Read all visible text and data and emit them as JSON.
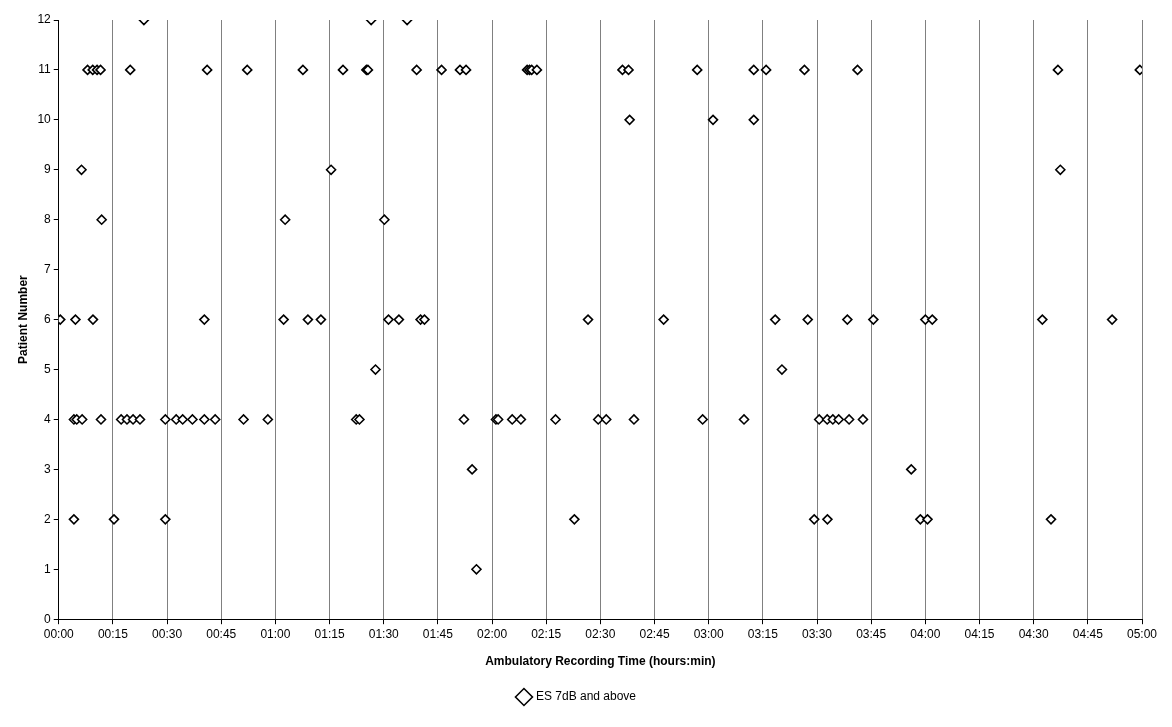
{
  "chart_data": {
    "type": "scatter",
    "xlabel": "Ambulatory Recording Time (hours:min)",
    "ylabel": "Patient Number",
    "xlim": [
      0,
      5
    ],
    "xticks": [
      {
        "value": 0,
        "label": "00:00"
      },
      {
        "value": 0.25,
        "label": "00:15"
      },
      {
        "value": 0.5,
        "label": "00:30"
      },
      {
        "value": 0.75,
        "label": "00:45"
      },
      {
        "value": 1,
        "label": "01:00"
      },
      {
        "value": 1.25,
        "label": "01:15"
      },
      {
        "value": 1.5,
        "label": "01:30"
      },
      {
        "value": 1.75,
        "label": "01:45"
      },
      {
        "value": 2,
        "label": "02:00"
      },
      {
        "value": 2.25,
        "label": "02:15"
      },
      {
        "value": 2.5,
        "label": "02:30"
      },
      {
        "value": 2.75,
        "label": "02:45"
      },
      {
        "value": 3,
        "label": "03:00"
      },
      {
        "value": 3.25,
        "label": "03:15"
      },
      {
        "value": 3.5,
        "label": "03:30"
      },
      {
        "value": 3.75,
        "label": "03:45"
      },
      {
        "value": 4,
        "label": "04:00"
      },
      {
        "value": 4.25,
        "label": "04:15"
      },
      {
        "value": 4.5,
        "label": "04:30"
      },
      {
        "value": 4.75,
        "label": "04:45"
      },
      {
        "value": 5,
        "label": "05:00"
      }
    ],
    "ylim": [
      0,
      12
    ],
    "yticks": [
      0,
      1,
      2,
      3,
      4,
      5,
      6,
      7,
      8,
      9,
      10,
      11,
      12
    ],
    "grid": "x",
    "legend": "bottom",
    "marker": "diamond",
    "series": [
      {
        "name": "ES 7dB and above",
        "color": "#000000",
        "x": [
          0.393,
          1.442,
          1.608,
          0.133,
          0.157,
          0.177,
          0.193,
          0.33,
          0.685,
          0.87,
          1.127,
          1.312,
          1.42,
          1.427,
          1.652,
          1.767,
          1.852,
          1.88,
          2.162,
          2.173,
          2.183,
          2.207,
          2.602,
          2.63,
          2.947,
          3.208,
          3.265,
          3.442,
          3.687,
          4.612,
          4.99,
          2.635,
          3.02,
          3.208,
          0.105,
          1.257,
          4.623,
          0.198,
          1.045,
          1.503,
          0.007,
          0.077,
          0.158,
          0.672,
          1.038,
          1.15,
          1.21,
          1.522,
          1.57,
          1.67,
          1.688,
          2.443,
          2.792,
          3.307,
          3.457,
          3.64,
          3.76,
          4.0,
          4.032,
          4.54,
          4.862,
          1.462,
          3.338,
          0.07,
          0.083,
          0.108,
          0.195,
          0.288,
          0.315,
          0.343,
          0.375,
          0.492,
          0.542,
          0.572,
          0.617,
          0.672,
          0.722,
          0.853,
          0.965,
          1.373,
          1.388,
          1.87,
          2.018,
          2.028,
          2.093,
          2.133,
          2.293,
          2.49,
          2.527,
          2.655,
          2.972,
          3.163,
          3.51,
          3.547,
          3.573,
          3.6,
          3.648,
          3.712,
          1.908,
          3.935,
          0.07,
          0.255,
          0.492,
          2.38,
          3.487,
          3.548,
          3.977,
          4.01,
          4.58,
          1.928
        ],
        "values": [
          12,
          12,
          12,
          11,
          11,
          11,
          11,
          11,
          11,
          11,
          11,
          11,
          11,
          11,
          11,
          11,
          11,
          11,
          11,
          11,
          11,
          11,
          11,
          11,
          11,
          11,
          11,
          11,
          11,
          11,
          11,
          10,
          10,
          10,
          9,
          9,
          9,
          8,
          8,
          8,
          6,
          6,
          6,
          6,
          6,
          6,
          6,
          6,
          6,
          6,
          6,
          6,
          6,
          6,
          6,
          6,
          6,
          6,
          6,
          6,
          6,
          5,
          5,
          4,
          4,
          4,
          4,
          4,
          4,
          4,
          4,
          4,
          4,
          4,
          4,
          4,
          4,
          4,
          4,
          4,
          4,
          4,
          4,
          4,
          4,
          4,
          4,
          4,
          4,
          4,
          4,
          4,
          4,
          4,
          4,
          4,
          4,
          4,
          3,
          3,
          2,
          2,
          2,
          2,
          2,
          2,
          2,
          2,
          2,
          1
        ]
      }
    ]
  }
}
